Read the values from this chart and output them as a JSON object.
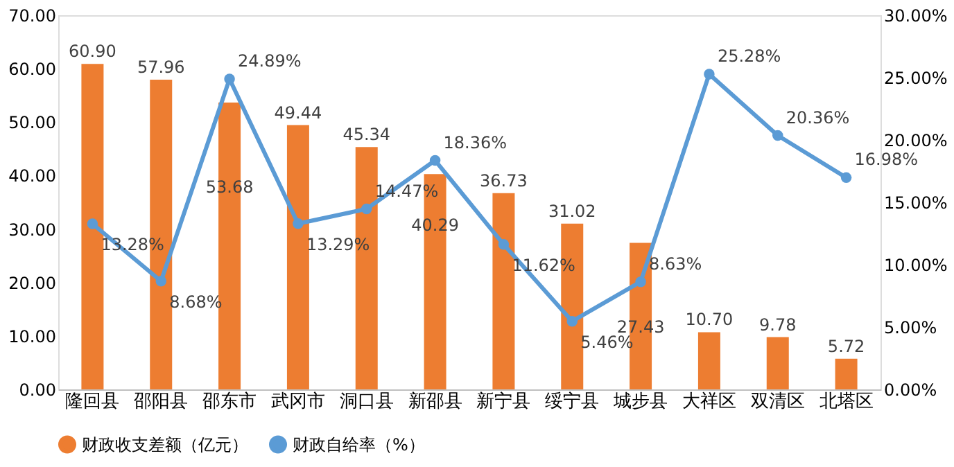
{
  "chart_data": {
    "type": "bar",
    "categories": [
      "隆回县",
      "邵阳县",
      "邵东市",
      "武冈市",
      "洞口县",
      "新邵县",
      "新宁县",
      "绥宁县",
      "城步县",
      "大祥区",
      "双清区",
      "北塔区"
    ],
    "series": [
      {
        "name": "财政收支差额（亿元）",
        "color": "#ed7d31",
        "values": [
          60.9,
          57.96,
          53.68,
          49.44,
          45.34,
          40.29,
          36.73,
          31.02,
          27.43,
          10.7,
          9.78,
          5.72
        ],
        "value_labels": [
          "60.90",
          "57.96",
          "53.68",
          "49.44",
          "45.34",
          "40.29",
          "36.73",
          "31.02",
          "27.43",
          "10.70",
          "9.78",
          "5.72"
        ]
      },
      {
        "name": "财政自给率（%）",
        "type": "line",
        "axis": "y2",
        "color": "#5b9bd5",
        "values": [
          13.28,
          8.68,
          24.89,
          13.29,
          14.47,
          18.36,
          11.62,
          5.46,
          8.63,
          25.28,
          20.36,
          16.98
        ],
        "value_labels": [
          "13.28%",
          "8.68%",
          "24.89%",
          "13.29%",
          "14.47%",
          "18.36%",
          "11.62%",
          "5.46%",
          "8.63%",
          "25.28%",
          "20.36%",
          "16.98%"
        ]
      }
    ],
    "ylim": [
      0,
      70
    ],
    "yticks": [
      {
        "value": 0,
        "label": "0.00"
      },
      {
        "value": 10,
        "label": "10.00"
      },
      {
        "value": 20,
        "label": "20.00"
      },
      {
        "value": 30,
        "label": "30.00"
      },
      {
        "value": 40,
        "label": "40.00"
      },
      {
        "value": 50,
        "label": "50.00"
      },
      {
        "value": 60,
        "label": "60.00"
      },
      {
        "value": 70,
        "label": "70.00"
      }
    ],
    "y2lim": [
      0,
      30
    ],
    "y2ticks": [
      {
        "value": 0,
        "label": "0.00%"
      },
      {
        "value": 5,
        "label": "5.00%"
      },
      {
        "value": 10,
        "label": "10.00%"
      },
      {
        "value": 15,
        "label": "15.00%"
      },
      {
        "value": 20,
        "label": "20.00%"
      },
      {
        "value": 25,
        "label": "25.00%"
      },
      {
        "value": 30,
        "label": "30.00%"
      }
    ],
    "marker": "circle",
    "legend": "bottom",
    "grid": false
  }
}
